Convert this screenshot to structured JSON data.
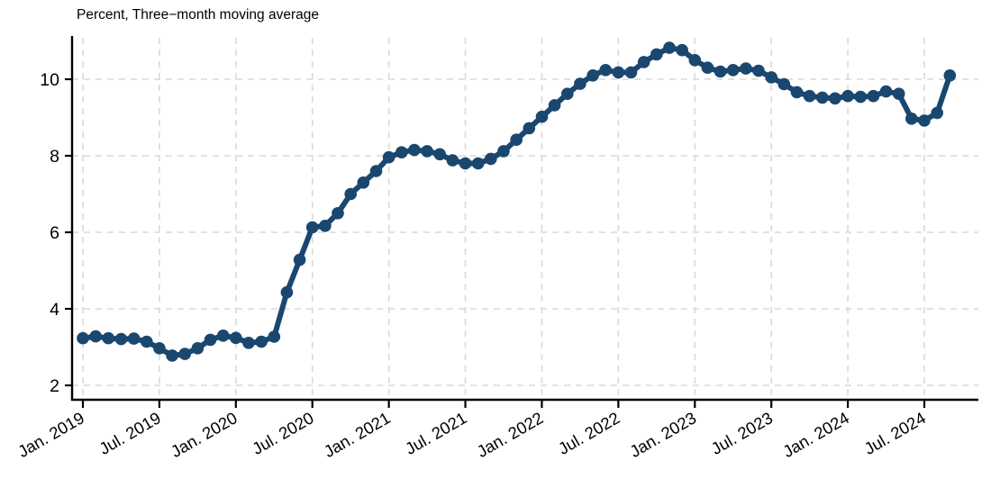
{
  "chart_data": {
    "type": "line",
    "title": "Percent, Three−month moving average",
    "xlabel": "",
    "ylabel": "",
    "legend": "none",
    "grid": "dashed, horizontal and vertical",
    "marker": "filled-circle",
    "line_color": "#1a476f",
    "grid_color": "#d9d9d9",
    "axis_color": "#000000",
    "text_color": "#000000",
    "background_color": "#ffffff",
    "ylim": [
      1.6,
      11.1
    ],
    "y_ticks": [
      2,
      4,
      6,
      8,
      10
    ],
    "x_tick_labels": [
      "Jan. 2019",
      "Jul. 2019",
      "Jan. 2020",
      "Jul. 2020",
      "Jan. 2021",
      "Jul. 2021",
      "Jan. 2022",
      "Jul. 2022",
      "Jan. 2023",
      "Jul. 2023",
      "Jan. 2024",
      "Jul. 2024"
    ],
    "x_tick_month_indices": [
      0,
      6,
      12,
      18,
      24,
      30,
      36,
      42,
      48,
      54,
      60,
      66
    ],
    "x": [
      "2019-01",
      "2019-02",
      "2019-03",
      "2019-04",
      "2019-05",
      "2019-06",
      "2019-07",
      "2019-08",
      "2019-09",
      "2019-10",
      "2019-11",
      "2019-12",
      "2020-01",
      "2020-02",
      "2020-03",
      "2020-04",
      "2020-05",
      "2020-06",
      "2020-07",
      "2020-08",
      "2020-09",
      "2020-10",
      "2020-11",
      "2020-12",
      "2021-01",
      "2021-02",
      "2021-03",
      "2021-04",
      "2021-05",
      "2021-06",
      "2021-07",
      "2021-08",
      "2021-09",
      "2021-10",
      "2021-11",
      "2021-12",
      "2022-01",
      "2022-02",
      "2022-03",
      "2022-04",
      "2022-05",
      "2022-06",
      "2022-07",
      "2022-08",
      "2022-09",
      "2022-10",
      "2022-11",
      "2022-12",
      "2023-01",
      "2023-02",
      "2023-03",
      "2023-04",
      "2023-05",
      "2023-06",
      "2023-07",
      "2023-08",
      "2023-09",
      "2023-10",
      "2023-11",
      "2023-12",
      "2024-01",
      "2024-02",
      "2024-03",
      "2024-04",
      "2024-05",
      "2024-06",
      "2024-07",
      "2024-08",
      "2024-09"
    ],
    "values": [
      3.23,
      3.28,
      3.23,
      3.21,
      3.22,
      3.14,
      2.97,
      2.78,
      2.82,
      2.97,
      3.19,
      3.3,
      3.24,
      3.11,
      3.14,
      3.27,
      4.43,
      5.28,
      6.13,
      6.17,
      6.5,
      7.0,
      7.3,
      7.6,
      7.96,
      8.09,
      8.15,
      8.12,
      8.04,
      7.88,
      7.8,
      7.8,
      7.92,
      8.12,
      8.42,
      8.72,
      9.02,
      9.32,
      9.62,
      9.88,
      10.1,
      10.24,
      10.18,
      10.18,
      10.45,
      10.65,
      10.82,
      10.76,
      10.5,
      10.3,
      10.2,
      10.24,
      10.28,
      10.22,
      10.05,
      9.87,
      9.66,
      9.56,
      9.52,
      9.5,
      9.56,
      9.54,
      9.56,
      9.68,
      9.62,
      8.97,
      8.92,
      9.12,
      10.1
    ]
  }
}
